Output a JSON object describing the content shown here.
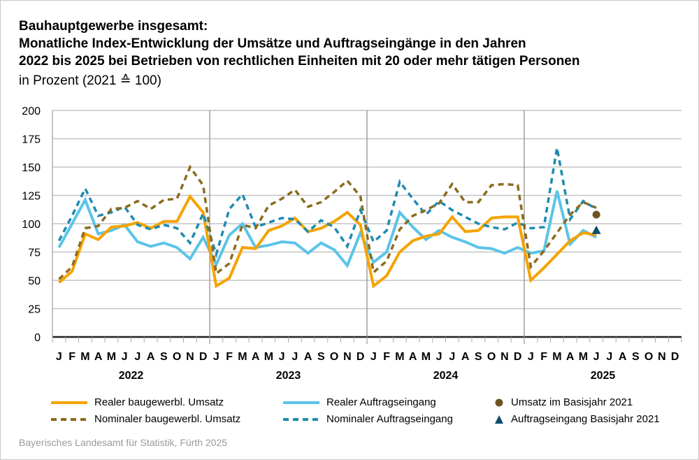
{
  "title_lines": [
    "Bauhauptgewerbe insgesamt:",
    "Monatliche Index-Entwicklung der Umsätze und Auftragseingänge in den Jahren",
    "2022 bis 2025 bei Betrieben von rechtlichen Einheiten mit 20 oder mehr tätigen Personen"
  ],
  "subtitle": "in Prozent (2021 ≙ 100)",
  "source": "Bayerisches Landesamt für Statistik, Fürth 2025",
  "chart_data": {
    "type": "line",
    "ylim": [
      0,
      200
    ],
    "yticks": [
      0,
      25,
      50,
      75,
      100,
      125,
      150,
      175,
      200
    ],
    "grid": true,
    "legend_position": "bottom",
    "month_labels": [
      "J",
      "F",
      "M",
      "A",
      "M",
      "J",
      "J",
      "A",
      "S",
      "O",
      "N",
      "D"
    ],
    "years": [
      "2022",
      "2023",
      "2024",
      "2025"
    ],
    "series": [
      {
        "name": "Realer baugewerbl. Umsatz",
        "color": "#f5a300",
        "style": "solid",
        "values": [
          48,
          58,
          91,
          86,
          97,
          98,
          101,
          96,
          102,
          102,
          124,
          110,
          45,
          52,
          79,
          78,
          94,
          98,
          105,
          93,
          96,
          102,
          110,
          99,
          45,
          54,
          75,
          85,
          89,
          91,
          106,
          93,
          94,
          105,
          106,
          106,
          50,
          61,
          73,
          85,
          92,
          90
        ]
      },
      {
        "name": "Nominaler baugewerbl. Umsatz",
        "color": "#8c6b1f",
        "style": "dashed",
        "values": [
          51,
          62,
          96,
          98,
          113,
          114,
          120,
          113,
          121,
          122,
          150,
          134,
          56,
          65,
          99,
          96,
          116,
          122,
          130,
          115,
          119,
          128,
          138,
          124,
          57,
          67,
          95,
          107,
          112,
          118,
          135,
          119,
          119,
          134,
          135,
          134,
          62,
          76,
          92,
          108,
          119,
          114
        ]
      },
      {
        "name": "Realer Auftragseingang",
        "color": "#5bc4e8",
        "style": "solid",
        "values": [
          79,
          100,
          121,
          91,
          94,
          99,
          84,
          80,
          83,
          79,
          69,
          88,
          64,
          90,
          100,
          79,
          81,
          84,
          83,
          74,
          83,
          77,
          63,
          92,
          66,
          75,
          110,
          97,
          86,
          94,
          88,
          84,
          79,
          78,
          74,
          79,
          74,
          76,
          129,
          82,
          94,
          88
        ]
      },
      {
        "name": "Nominaler Auftragseingang",
        "color": "#1e8bb0",
        "style": "dashed",
        "values": [
          85,
          107,
          131,
          107,
          110,
          115,
          99,
          95,
          99,
          96,
          83,
          109,
          73,
          113,
          126,
          97,
          101,
          105,
          104,
          93,
          103,
          97,
          80,
          112,
          84,
          94,
          137,
          122,
          108,
          120,
          112,
          106,
          100,
          97,
          95,
          101,
          96,
          97,
          167,
          104,
          120,
          113
        ]
      }
    ],
    "markers": [
      {
        "name": "Umsatz im Basisjahr 2021",
        "color": "#6b5220",
        "shape": "circle",
        "month": "J",
        "year": "2025",
        "value": 108
      },
      {
        "name": "Auftragseingang Basisjahr 2021",
        "color": "#0b4f6c",
        "shape": "triangle",
        "month": "J",
        "year": "2025",
        "value": 94
      }
    ]
  }
}
